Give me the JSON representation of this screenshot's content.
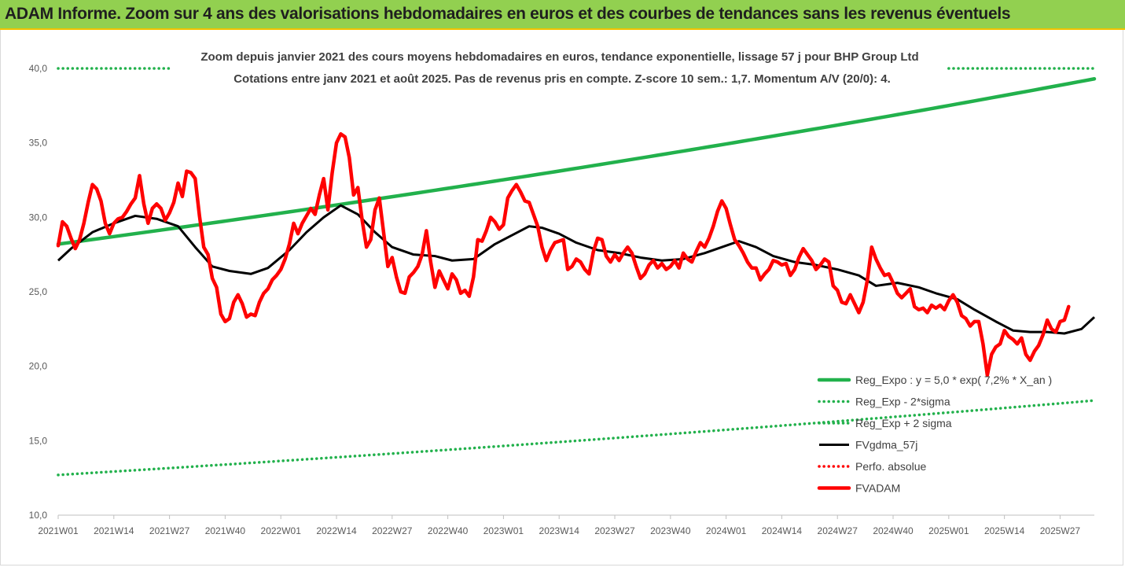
{
  "banner": {
    "title": "ADAM Informe. Zoom sur 4 ans des valorisations hebdomadaires en euros et des courbes de tendances sans les revenus éventuels"
  },
  "chart_data": {
    "type": "line",
    "title": "Zoom depuis janvier 2021 des cours moyens hebdomadaires en euros, tendance exponentielle, lissage 57 j pour BHP Group Ltd",
    "subtitle": "Cotations entre janv 2021 et août 2025.  Pas de revenus pris en compte. Z-score 10 sem.: 1,7. Momentum A/V (20/0): 4.",
    "xlabel": "",
    "ylabel": "",
    "ylim": [
      10,
      40
    ],
    "ytick_labels": [
      "10,0",
      "15,0",
      "20,0",
      "25,0",
      "30,0",
      "35,0",
      "40,0"
    ],
    "ytick_values": [
      10,
      15,
      20,
      25,
      30,
      35,
      40
    ],
    "xtick_labels": [
      "2021W01",
      "2021W14",
      "2021W27",
      "2021W40",
      "2022W01",
      "2022W14",
      "2022W27",
      "2022W40",
      "2023W01",
      "2023W14",
      "2023W27",
      "2023W40",
      "2024W01",
      "2024W14",
      "2024W27",
      "2024W40",
      "2025W01",
      "2025W14",
      "2025W27"
    ],
    "xtick_index": [
      0,
      13,
      26,
      39,
      52,
      65,
      78,
      91,
      104,
      117,
      130,
      143,
      156,
      169,
      182,
      195,
      208,
      221,
      234
    ],
    "n_weeks": 243,
    "grid": false,
    "legend_position": "bottom-right",
    "series": [
      {
        "name": "Reg_Expo : y = 5,0 * exp( 7,2% *  X_an )",
        "color": "#22b14c",
        "style": "solid-thick",
        "start": 28.2,
        "end": 39.3
      },
      {
        "name": "Reg_Exp - 2*sigma",
        "color": "#22b14c",
        "style": "dotted",
        "start": 12.7,
        "end": 17.7
      },
      {
        "name": "Reg_Exp + 2 sigma",
        "color": "#22b14c",
        "style": "dotted",
        "start": 40.0,
        "end": 40.0
      },
      {
        "name": "FVgdma_57j",
        "color": "#000000",
        "style": "solid",
        "points": [
          [
            0,
            27.1
          ],
          [
            3,
            27.9
          ],
          [
            8,
            29.0
          ],
          [
            13,
            29.6
          ],
          [
            18,
            30.1
          ],
          [
            23,
            29.9
          ],
          [
            28,
            29.4
          ],
          [
            32,
            28.0
          ],
          [
            36,
            26.7
          ],
          [
            40,
            26.4
          ],
          [
            45,
            26.2
          ],
          [
            49,
            26.6
          ],
          [
            54,
            27.8
          ],
          [
            58,
            29.0
          ],
          [
            62,
            30.0
          ],
          [
            66,
            30.8
          ],
          [
            70,
            30.2
          ],
          [
            74,
            29.0
          ],
          [
            78,
            28.0
          ],
          [
            83,
            27.5
          ],
          [
            88,
            27.4
          ],
          [
            92,
            27.1
          ],
          [
            97,
            27.2
          ],
          [
            102,
            28.2
          ],
          [
            106,
            28.8
          ],
          [
            110,
            29.4
          ],
          [
            113,
            29.3
          ],
          [
            117,
            28.9
          ],
          [
            121,
            28.3
          ],
          [
            126,
            27.8
          ],
          [
            131,
            27.6
          ],
          [
            136,
            27.3
          ],
          [
            141,
            27.1
          ],
          [
            146,
            27.2
          ],
          [
            151,
            27.6
          ],
          [
            156,
            28.1
          ],
          [
            159,
            28.4
          ],
          [
            163,
            28.0
          ],
          [
            167,
            27.4
          ],
          [
            172,
            27.0
          ],
          [
            177,
            26.8
          ],
          [
            182,
            26.5
          ],
          [
            187,
            26.1
          ],
          [
            191,
            25.4
          ],
          [
            196,
            25.6
          ],
          [
            201,
            25.3
          ],
          [
            205,
            24.9
          ],
          [
            210,
            24.5
          ],
          [
            214,
            23.8
          ],
          [
            219,
            23.0
          ],
          [
            223,
            22.4
          ],
          [
            227,
            22.3
          ],
          [
            231,
            22.3
          ],
          [
            235,
            22.2
          ],
          [
            239,
            22.5
          ],
          [
            242,
            23.3
          ]
        ]
      },
      {
        "name": "Perfo. absolue",
        "color": "#ff0000",
        "style": "dotted",
        "points": []
      },
      {
        "name": "FVADAM",
        "color": "#ff0000",
        "style": "solid-thick",
        "points": [
          [
            0,
            28.1
          ],
          [
            1,
            29.7
          ],
          [
            2,
            29.4
          ],
          [
            3,
            28.6
          ],
          [
            4,
            27.9
          ],
          [
            5,
            28.5
          ],
          [
            6,
            29.6
          ],
          [
            7,
            31.0
          ],
          [
            8,
            32.2
          ],
          [
            9,
            31.9
          ],
          [
            10,
            31.1
          ],
          [
            11,
            29.6
          ],
          [
            12,
            28.9
          ],
          [
            13,
            29.6
          ],
          [
            14,
            29.9
          ],
          [
            15,
            30.0
          ],
          [
            16,
            30.4
          ],
          [
            17,
            30.9
          ],
          [
            18,
            31.3
          ],
          [
            19,
            32.8
          ],
          [
            20,
            30.9
          ],
          [
            21,
            29.6
          ],
          [
            22,
            30.6
          ],
          [
            23,
            30.9
          ],
          [
            24,
            30.6
          ],
          [
            25,
            29.8
          ],
          [
            26,
            30.3
          ],
          [
            27,
            31.0
          ],
          [
            28,
            32.3
          ],
          [
            29,
            31.4
          ],
          [
            30,
            33.1
          ],
          [
            31,
            33.0
          ],
          [
            32,
            32.6
          ],
          [
            33,
            30.1
          ],
          [
            34,
            28.0
          ],
          [
            35,
            27.5
          ],
          [
            36,
            25.9
          ],
          [
            37,
            25.3
          ],
          [
            38,
            23.5
          ],
          [
            39,
            23.0
          ],
          [
            40,
            23.2
          ],
          [
            41,
            24.3
          ],
          [
            42,
            24.8
          ],
          [
            43,
            24.2
          ],
          [
            44,
            23.3
          ],
          [
            45,
            23.5
          ],
          [
            46,
            23.4
          ],
          [
            47,
            24.3
          ],
          [
            48,
            24.9
          ],
          [
            49,
            25.2
          ],
          [
            50,
            25.8
          ],
          [
            51,
            26.1
          ],
          [
            52,
            26.5
          ],
          [
            53,
            27.2
          ],
          [
            54,
            28.2
          ],
          [
            55,
            29.6
          ],
          [
            56,
            28.9
          ],
          [
            57,
            29.6
          ],
          [
            58,
            30.1
          ],
          [
            59,
            30.6
          ],
          [
            60,
            30.2
          ],
          [
            61,
            31.5
          ],
          [
            62,
            32.6
          ],
          [
            63,
            30.5
          ],
          [
            64,
            33.0
          ],
          [
            65,
            35.0
          ],
          [
            66,
            35.6
          ],
          [
            67,
            35.4
          ],
          [
            68,
            34.0
          ],
          [
            69,
            31.5
          ],
          [
            70,
            32.0
          ],
          [
            71,
            29.8
          ],
          [
            72,
            28.0
          ],
          [
            73,
            28.5
          ],
          [
            74,
            30.5
          ],
          [
            75,
            31.3
          ],
          [
            76,
            29.0
          ],
          [
            77,
            26.7
          ],
          [
            78,
            27.3
          ],
          [
            79,
            26.0
          ],
          [
            80,
            25.0
          ],
          [
            81,
            24.9
          ],
          [
            82,
            26.0
          ],
          [
            83,
            26.3
          ],
          [
            84,
            26.7
          ],
          [
            85,
            27.5
          ],
          [
            86,
            29.1
          ],
          [
            87,
            27.0
          ],
          [
            88,
            25.3
          ],
          [
            89,
            26.4
          ],
          [
            90,
            25.8
          ],
          [
            91,
            25.2
          ],
          [
            92,
            26.2
          ],
          [
            93,
            25.8
          ],
          [
            94,
            24.9
          ],
          [
            95,
            25.1
          ],
          [
            96,
            24.7
          ],
          [
            97,
            26.0
          ],
          [
            98,
            28.5
          ],
          [
            99,
            28.4
          ],
          [
            100,
            29.1
          ],
          [
            101,
            30.0
          ],
          [
            102,
            29.7
          ],
          [
            103,
            29.2
          ],
          [
            104,
            29.5
          ],
          [
            105,
            31.3
          ],
          [
            106,
            31.8
          ],
          [
            107,
            32.2
          ],
          [
            108,
            31.7
          ],
          [
            109,
            31.1
          ],
          [
            110,
            31.0
          ],
          [
            111,
            30.2
          ],
          [
            112,
            29.4
          ],
          [
            113,
            28.0
          ],
          [
            114,
            27.1
          ],
          [
            115,
            27.8
          ],
          [
            116,
            28.3
          ],
          [
            117,
            28.4
          ],
          [
            118,
            28.5
          ],
          [
            119,
            26.5
          ],
          [
            120,
            26.7
          ],
          [
            121,
            27.2
          ],
          [
            122,
            27.0
          ],
          [
            123,
            26.5
          ],
          [
            124,
            26.2
          ],
          [
            125,
            27.7
          ],
          [
            126,
            28.6
          ],
          [
            127,
            28.5
          ],
          [
            128,
            27.4
          ],
          [
            129,
            27.0
          ],
          [
            130,
            27.5
          ],
          [
            131,
            27.1
          ],
          [
            132,
            27.6
          ],
          [
            133,
            28.0
          ],
          [
            134,
            27.6
          ],
          [
            135,
            26.7
          ],
          [
            136,
            25.9
          ],
          [
            137,
            26.2
          ],
          [
            138,
            26.8
          ],
          [
            139,
            27.1
          ],
          [
            140,
            26.6
          ],
          [
            141,
            26.9
          ],
          [
            142,
            26.5
          ],
          [
            143,
            26.7
          ],
          [
            144,
            27.1
          ],
          [
            145,
            26.6
          ],
          [
            146,
            27.6
          ],
          [
            147,
            27.2
          ],
          [
            148,
            27.0
          ],
          [
            149,
            27.7
          ],
          [
            150,
            28.3
          ],
          [
            151,
            28.0
          ],
          [
            152,
            28.6
          ],
          [
            153,
            29.4
          ],
          [
            154,
            30.4
          ],
          [
            155,
            31.1
          ],
          [
            156,
            30.6
          ],
          [
            157,
            29.5
          ],
          [
            158,
            28.5
          ],
          [
            159,
            28.1
          ],
          [
            160,
            27.6
          ],
          [
            161,
            27.0
          ],
          [
            162,
            26.6
          ],
          [
            163,
            26.6
          ],
          [
            164,
            25.8
          ],
          [
            165,
            26.2
          ],
          [
            166,
            26.5
          ],
          [
            167,
            27.1
          ],
          [
            168,
            27.0
          ],
          [
            169,
            26.8
          ],
          [
            170,
            26.9
          ],
          [
            171,
            26.1
          ],
          [
            172,
            26.5
          ],
          [
            173,
            27.3
          ],
          [
            174,
            27.9
          ],
          [
            175,
            27.5
          ],
          [
            176,
            27.1
          ],
          [
            177,
            26.5
          ],
          [
            178,
            26.8
          ],
          [
            179,
            27.2
          ],
          [
            180,
            27.0
          ],
          [
            181,
            25.4
          ],
          [
            182,
            25.1
          ],
          [
            183,
            24.3
          ],
          [
            184,
            24.2
          ],
          [
            185,
            24.8
          ],
          [
            186,
            24.2
          ],
          [
            187,
            23.6
          ],
          [
            188,
            24.3
          ],
          [
            189,
            25.8
          ],
          [
            190,
            28.0
          ],
          [
            191,
            27.2
          ],
          [
            192,
            26.6
          ],
          [
            193,
            26.1
          ],
          [
            194,
            26.2
          ],
          [
            195,
            25.6
          ],
          [
            196,
            24.9
          ],
          [
            197,
            24.6
          ],
          [
            198,
            24.9
          ],
          [
            199,
            25.2
          ],
          [
            200,
            24.0
          ],
          [
            201,
            23.8
          ],
          [
            202,
            23.9
          ],
          [
            203,
            23.6
          ],
          [
            204,
            24.1
          ],
          [
            205,
            23.9
          ],
          [
            206,
            24.1
          ],
          [
            207,
            23.8
          ],
          [
            208,
            24.4
          ],
          [
            209,
            24.8
          ],
          [
            210,
            24.3
          ],
          [
            211,
            23.4
          ],
          [
            212,
            23.2
          ],
          [
            213,
            22.7
          ],
          [
            214,
            23.0
          ],
          [
            215,
            23.0
          ],
          [
            216,
            21.5
          ],
          [
            217,
            19.4
          ],
          [
            218,
            20.8
          ],
          [
            219,
            21.3
          ],
          [
            220,
            21.5
          ],
          [
            221,
            22.4
          ],
          [
            222,
            22.0
          ],
          [
            223,
            21.8
          ],
          [
            224,
            21.5
          ],
          [
            225,
            21.9
          ],
          [
            226,
            20.8
          ],
          [
            227,
            20.4
          ],
          [
            228,
            21.0
          ],
          [
            229,
            21.4
          ],
          [
            230,
            22.1
          ],
          [
            231,
            23.1
          ],
          [
            232,
            22.5
          ],
          [
            233,
            22.3
          ],
          [
            234,
            23.0
          ],
          [
            235,
            23.1
          ],
          [
            236,
            24.0
          ]
        ]
      }
    ]
  }
}
